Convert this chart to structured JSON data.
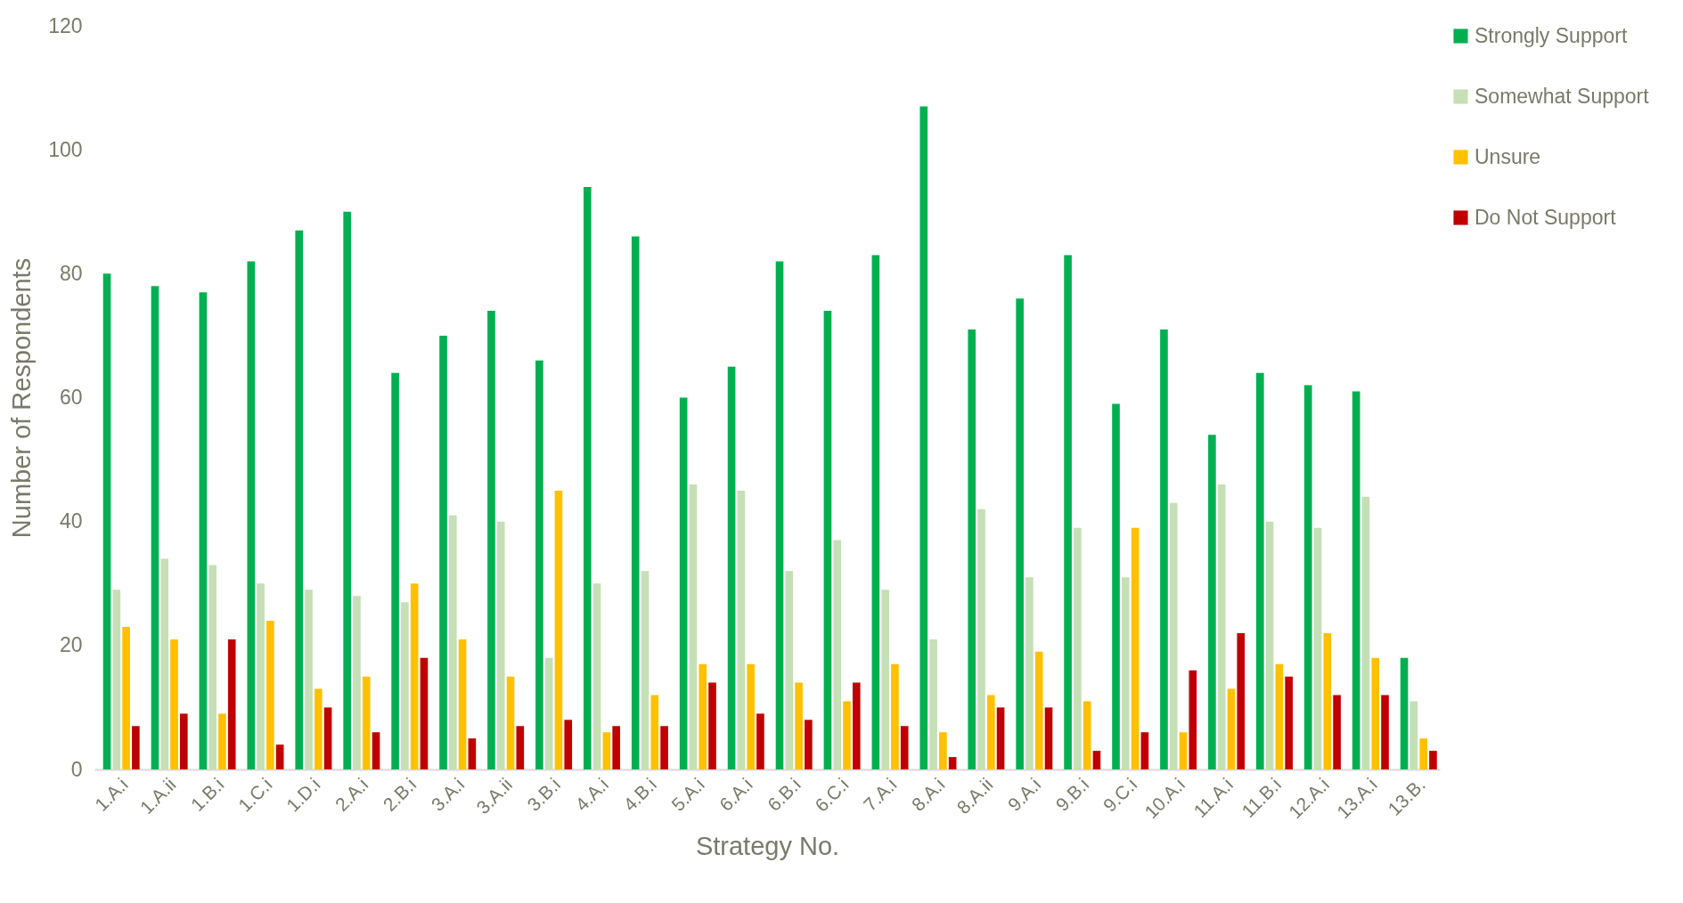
{
  "chart_data": {
    "type": "bar",
    "xlabel": "Strategy No.",
    "ylabel": "Number of Respondents",
    "categories": [
      "1.A.i",
      "1.A.ii",
      "1.B.i",
      "1.C.i",
      "1.D.i",
      "2.A.i",
      "2.B.i",
      "3.A.i",
      "3.A.ii",
      "3.B.i",
      "4.A.i",
      "4.B.i",
      "5.A.i",
      "6.A.i",
      "6.B.i",
      "6.C.i",
      "7.A.i",
      "8.A.i",
      "8.A.ii",
      "9.A.i",
      "9.B.i",
      "9.C.i",
      "10.A.i",
      "11.A.i",
      "11.B.i",
      "12.A.i",
      "13.A.i",
      "13.B."
    ],
    "series": [
      {
        "name": "Strongly Support",
        "color": "#00b050",
        "values": [
          80,
          78,
          77,
          82,
          87,
          90,
          64,
          70,
          74,
          66,
          94,
          86,
          60,
          65,
          82,
          74,
          83,
          107,
          71,
          76,
          83,
          59,
          71,
          54,
          64,
          62,
          61,
          18
        ]
      },
      {
        "name": "Somewhat Support",
        "color": "#c5e0b4",
        "values": [
          29,
          34,
          33,
          30,
          29,
          28,
          27,
          41,
          40,
          18,
          30,
          32,
          46,
          45,
          32,
          37,
          29,
          21,
          42,
          31,
          39,
          31,
          43,
          46,
          40,
          39,
          44,
          11
        ]
      },
      {
        "name": "Unsure",
        "color": "#ffc000",
        "values": [
          23,
          21,
          9,
          24,
          13,
          15,
          30,
          21,
          15,
          45,
          6,
          12,
          17,
          17,
          14,
          11,
          17,
          6,
          12,
          19,
          11,
          39,
          6,
          13,
          17,
          22,
          18,
          5
        ]
      },
      {
        "name": "Do Not Support",
        "color": "#c00000",
        "values": [
          7,
          9,
          21,
          4,
          10,
          6,
          18,
          5,
          7,
          8,
          7,
          7,
          14,
          9,
          8,
          14,
          7,
          2,
          10,
          10,
          3,
          6,
          16,
          22,
          15,
          12,
          12,
          3
        ]
      }
    ],
    "ylim": [
      0,
      120
    ],
    "yticks": [
      0,
      20,
      40,
      60,
      80,
      100,
      120
    ],
    "grid": false,
    "legend": "right"
  }
}
